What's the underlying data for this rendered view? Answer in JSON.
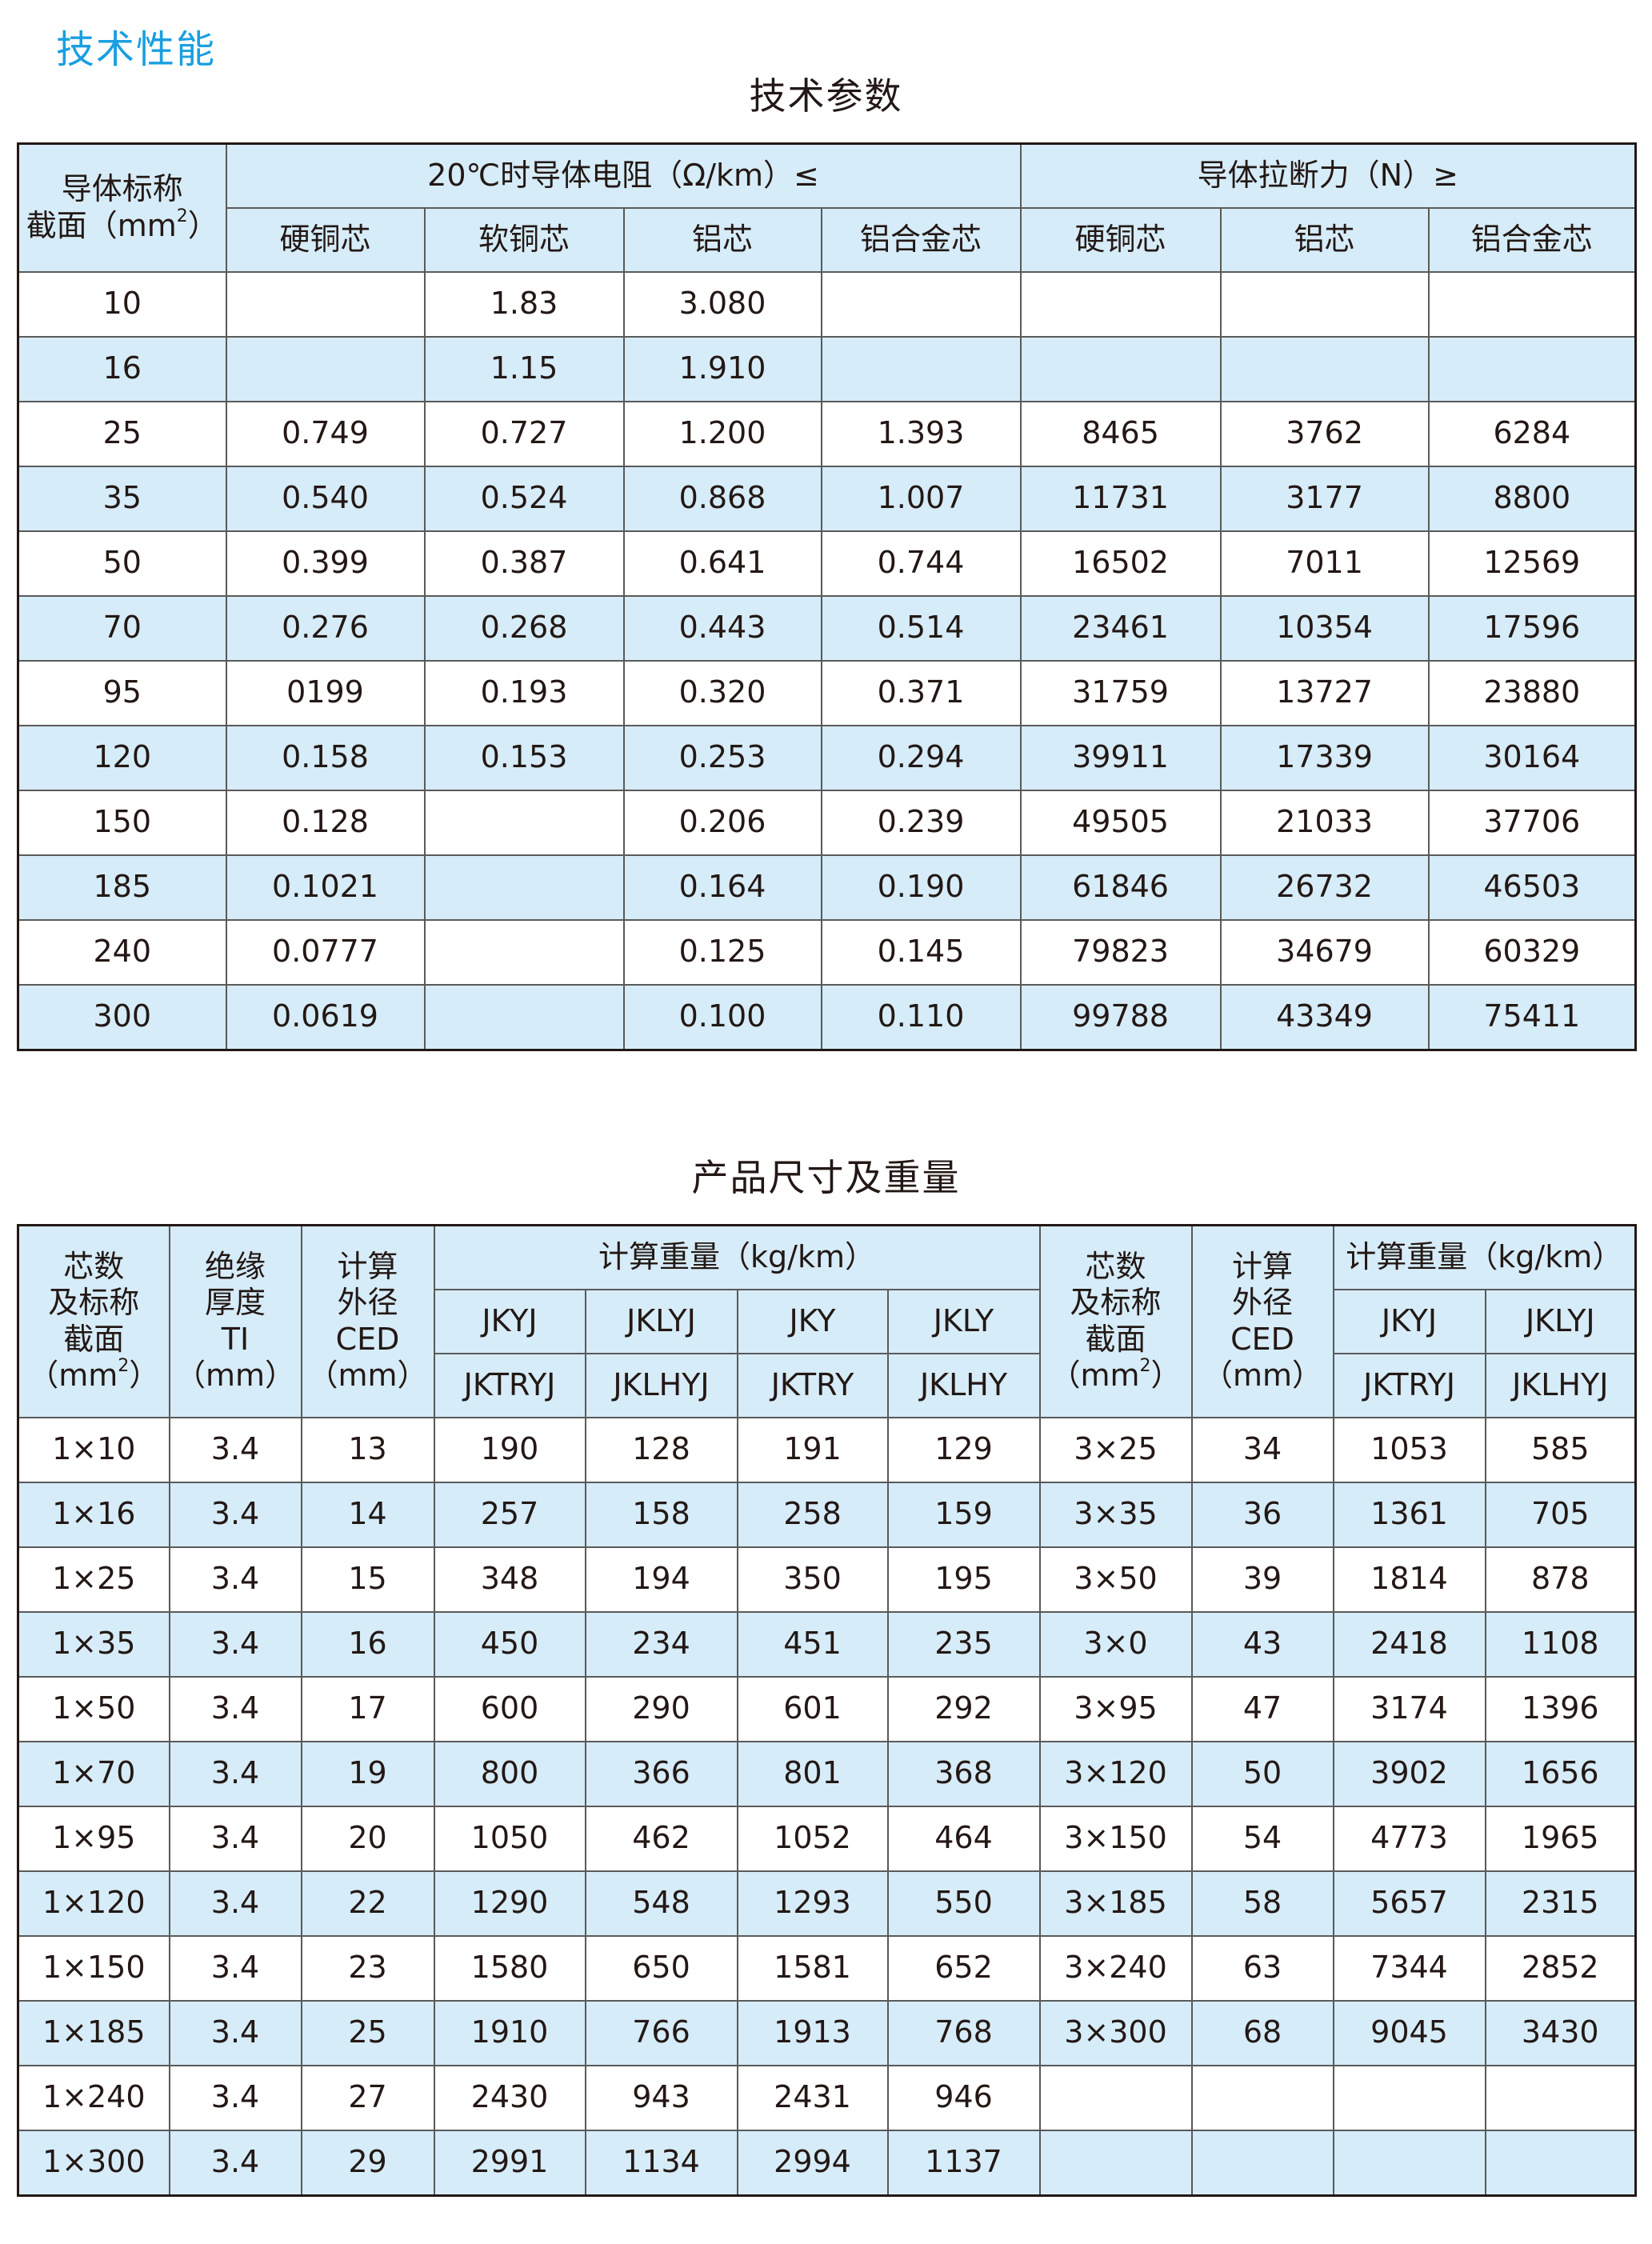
{
  "section_title": "技术性能",
  "table1": {
    "title": "技术参数",
    "header": {
      "section_pre": "导体标称",
      "section_line2": "截面（mm",
      "section_sup": "2",
      "section_post": "）",
      "resistance_group": "20℃时导体电阻（Ω/km）≤",
      "tensile_group": "导体拉断力（N）≥",
      "resistance_cols": [
        "硬铜芯",
        "软铜芯",
        "铝芯",
        "铝合金芯"
      ],
      "tensile_cols": [
        "硬铜芯",
        "铝芯",
        "铝合金芯"
      ]
    },
    "rows": [
      [
        "10",
        "",
        "1.83",
        "3.080",
        "",
        "",
        "",
        ""
      ],
      [
        "16",
        "",
        "1.15",
        "1.910",
        "",
        "",
        "",
        ""
      ],
      [
        "25",
        "0.749",
        "0.727",
        "1.200",
        "1.393",
        "8465",
        "3762",
        "6284"
      ],
      [
        "35",
        "0.540",
        "0.524",
        "0.868",
        "1.007",
        "11731",
        "3177",
        "8800"
      ],
      [
        "50",
        "0.399",
        "0.387",
        "0.641",
        "0.744",
        "16502",
        "7011",
        "12569"
      ],
      [
        "70",
        "0.276",
        "0.268",
        "0.443",
        "0.514",
        "23461",
        "10354",
        "17596"
      ],
      [
        "95",
        "0199",
        "0.193",
        "0.320",
        "0.371",
        "31759",
        "13727",
        "23880"
      ],
      [
        "120",
        "0.158",
        "0.153",
        "0.253",
        "0.294",
        "39911",
        "17339",
        "30164"
      ],
      [
        "150",
        "0.128",
        "",
        "0.206",
        "0.239",
        "49505",
        "21033",
        "37706"
      ],
      [
        "185",
        "0.1021",
        "",
        "0.164",
        "0.190",
        "61846",
        "26732",
        "46503"
      ],
      [
        "240",
        "0.0777",
        "",
        "0.125",
        "0.145",
        "79823",
        "34679",
        "60329"
      ],
      [
        "300",
        "0.0619",
        "",
        "0.100",
        "0.110",
        "99788",
        "43349",
        "75411"
      ]
    ]
  },
  "table2": {
    "title": "产品尺寸及重量",
    "header": {
      "cores_lines": [
        "芯数",
        "及标称",
        "截面"
      ],
      "cores_unit_pre": "（mm",
      "cores_unit_sup": "2",
      "cores_unit_post": "）",
      "insulation_lines": [
        "绝缘",
        "厚度",
        "TI",
        "（mm）"
      ],
      "diameter_lines": [
        "计算",
        "外径",
        "CED",
        "（mm）"
      ],
      "weight_group": "计算重量（kg/km）",
      "weight_cols_row1": [
        "JKYJ",
        "JKLYJ",
        "JKY",
        "JKLY"
      ],
      "weight_cols_row2": [
        "JKTRYJ",
        "JKLHYJ",
        "JKTRY",
        "JKLHY"
      ],
      "right_cores_lines": [
        "芯数",
        "及标称",
        "截面"
      ],
      "right_cores_unit_pre": "（mm",
      "right_cores_unit_sup": "2",
      "right_cores_unit_post": "）",
      "right_diameter_lines": [
        "计算",
        "外径",
        "CED",
        "（mm）"
      ],
      "right_weight_group": "计算重量（kg/km）",
      "right_weight_cols_row1": [
        "JKYJ",
        "JKLYJ"
      ],
      "right_weight_cols_row2": [
        "JKTRYJ",
        "JKLHYJ"
      ]
    },
    "rows": [
      [
        "1×10",
        "3.4",
        "13",
        "190",
        "128",
        "191",
        "129",
        "3×25",
        "34",
        "1053",
        "585"
      ],
      [
        "1×16",
        "3.4",
        "14",
        "257",
        "158",
        "258",
        "159",
        "3×35",
        "36",
        "1361",
        "705"
      ],
      [
        "1×25",
        "3.4",
        "15",
        "348",
        "194",
        "350",
        "195",
        "3×50",
        "39",
        "1814",
        "878"
      ],
      [
        "1×35",
        "3.4",
        "16",
        "450",
        "234",
        "451",
        "235",
        "3×0",
        "43",
        "2418",
        "1108"
      ],
      [
        "1×50",
        "3.4",
        "17",
        "600",
        "290",
        "601",
        "292",
        "3×95",
        "47",
        "3174",
        "1396"
      ],
      [
        "1×70",
        "3.4",
        "19",
        "800",
        "366",
        "801",
        "368",
        "3×120",
        "50",
        "3902",
        "1656"
      ],
      [
        "1×95",
        "3.4",
        "20",
        "1050",
        "462",
        "1052",
        "464",
        "3×150",
        "54",
        "4773",
        "1965"
      ],
      [
        "1×120",
        "3.4",
        "22",
        "1290",
        "548",
        "1293",
        "550",
        "3×185",
        "58",
        "5657",
        "2315"
      ],
      [
        "1×150",
        "3.4",
        "23",
        "1580",
        "650",
        "1581",
        "652",
        "3×240",
        "63",
        "7344",
        "2852"
      ],
      [
        "1×185",
        "3.4",
        "25",
        "1910",
        "766",
        "1913",
        "768",
        "3×300",
        "68",
        "9045",
        "3430"
      ],
      [
        "1×240",
        "3.4",
        "27",
        "2430",
        "943",
        "2431",
        "946",
        "",
        "",
        "",
        ""
      ],
      [
        "1×300",
        "3.4",
        "29",
        "2991",
        "1134",
        "2994",
        "1137",
        "",
        "",
        "",
        ""
      ]
    ]
  },
  "colors": {
    "accent": "#1a9fe0",
    "header_bg": "#d6ecf8",
    "text": "#231815"
  }
}
